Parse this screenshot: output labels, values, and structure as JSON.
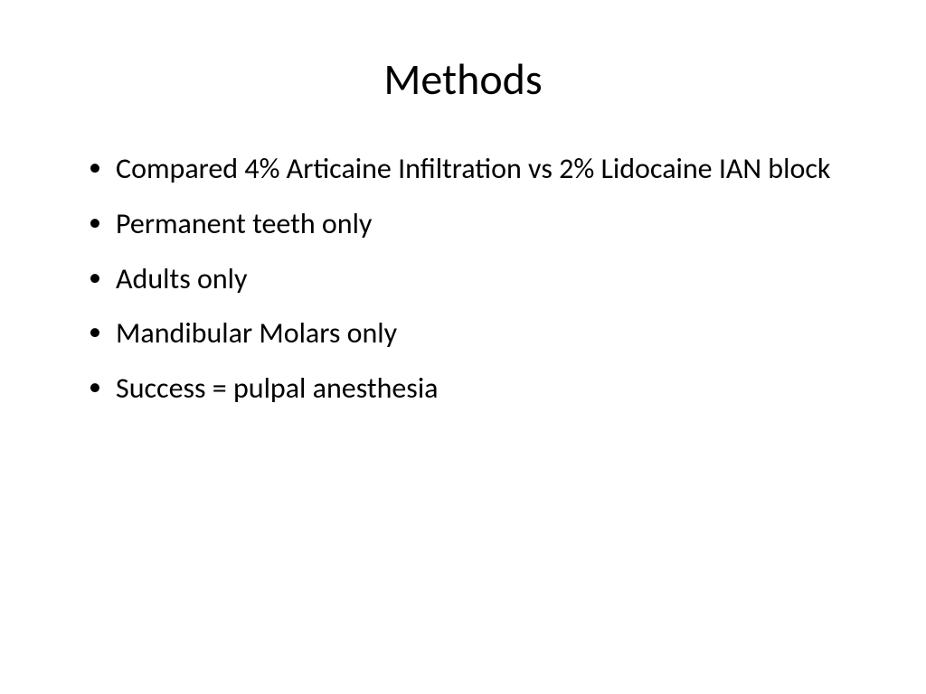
{
  "slide": {
    "title": "Methods",
    "bullets": [
      "Compared 4% Articaine Infiltration vs 2% Lidocaine IAN block",
      "Permanent teeth only",
      "Adults only",
      "Mandibular Molars only",
      "Success = pulpal anesthesia"
    ],
    "styling": {
      "background_color": "#ffffff",
      "text_color": "#000000",
      "title_fontsize": 48,
      "title_weight": 400,
      "bullet_fontsize": 32,
      "font_family": "Calibri",
      "bullet_marker": "•"
    }
  }
}
